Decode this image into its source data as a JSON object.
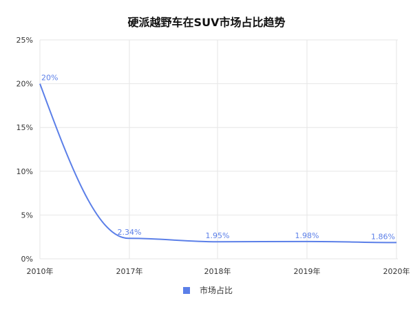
{
  "chart_data": {
    "type": "line",
    "title": "硬派越野车在SUV市场占比趋势",
    "categories": [
      "2010年",
      "2017年",
      "2018年",
      "2019年",
      "2020年"
    ],
    "y_tick_labels": [
      "0%",
      "5%",
      "10%",
      "15%",
      "20%",
      "25%"
    ],
    "ylim": [
      0,
      25
    ],
    "grid": true,
    "legend_position": "bottom",
    "series": [
      {
        "name": "市场占比",
        "values": [
          20,
          2.34,
          1.95,
          1.98,
          1.86
        ],
        "data_labels": [
          "20%",
          "2.34%",
          "1.95%",
          "1.98%",
          "1.86%"
        ],
        "color": "#5b7fe8"
      }
    ],
    "colors": {
      "line": "#5b7fe8",
      "data_label": "#5b7fe8",
      "grid": "#e6e6e6",
      "axis_text": "#333333",
      "title": "#111111"
    }
  }
}
